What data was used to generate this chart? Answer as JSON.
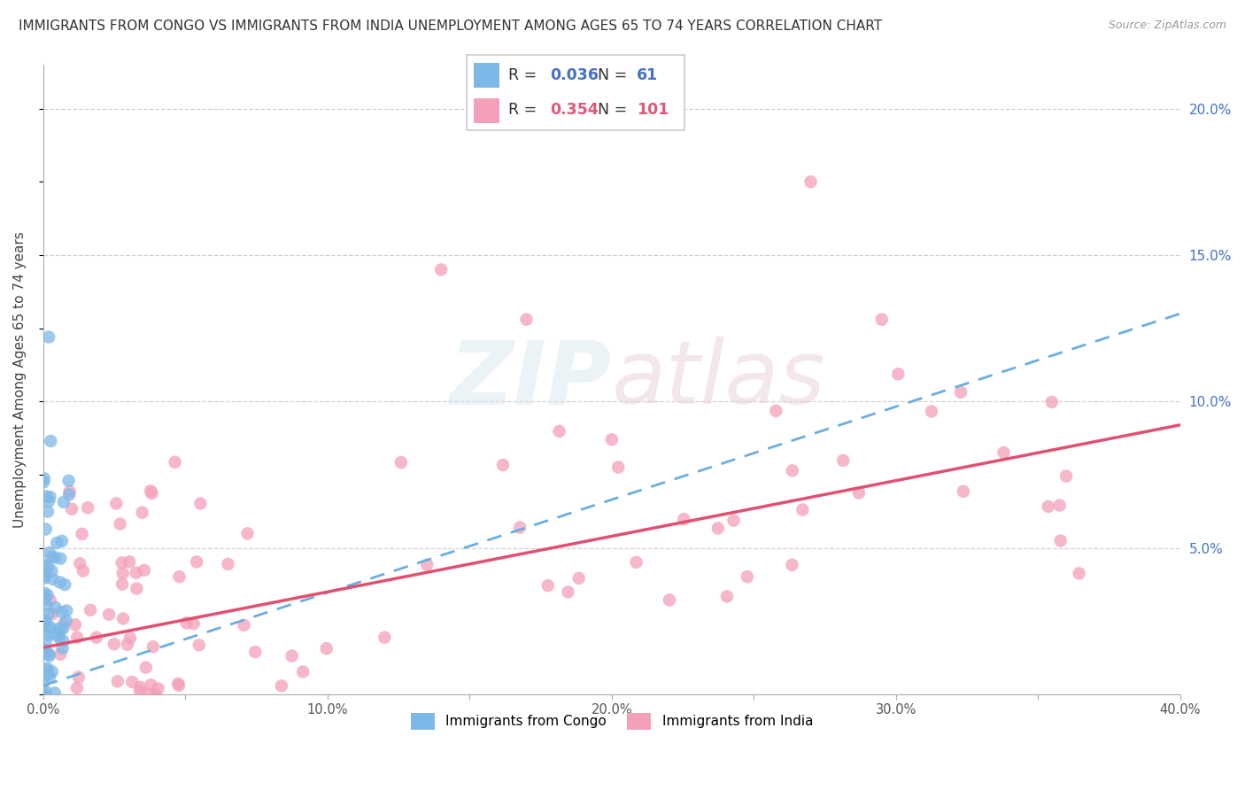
{
  "title": "IMMIGRANTS FROM CONGO VS IMMIGRANTS FROM INDIA UNEMPLOYMENT AMONG AGES 65 TO 74 YEARS CORRELATION CHART",
  "source": "Source: ZipAtlas.com",
  "ylabel": "Unemployment Among Ages 65 to 74 years",
  "xlim": [
    0.0,
    0.4
  ],
  "ylim": [
    0.0,
    0.215
  ],
  "xtick_labels": [
    "0.0%",
    "",
    "10.0%",
    "",
    "20.0%",
    "",
    "30.0%",
    "",
    "40.0%"
  ],
  "xtick_vals": [
    0.0,
    0.05,
    0.1,
    0.15,
    0.2,
    0.25,
    0.3,
    0.35,
    0.4
  ],
  "ytick_labels_right": [
    "5.0%",
    "10.0%",
    "15.0%",
    "20.0%"
  ],
  "ytick_vals": [
    0.05,
    0.1,
    0.15,
    0.2
  ],
  "congo_R": 0.036,
  "congo_N": 61,
  "india_R": 0.354,
  "india_N": 101,
  "congo_color": "#7eb8e8",
  "india_color": "#f4a0b8",
  "congo_line_color": "#6aaee0",
  "india_line_color": "#e05070",
  "background_color": "#ffffff",
  "grid_color": "#d0d0d0",
  "legend_label_congo": "Immigrants from Congo",
  "legend_label_india": "Immigrants from India",
  "congo_trend_x": [
    0.0,
    0.4
  ],
  "congo_trend_y": [
    0.003,
    0.13
  ],
  "india_trend_x": [
    0.0,
    0.4
  ],
  "india_trend_y": [
    0.016,
    0.092
  ]
}
